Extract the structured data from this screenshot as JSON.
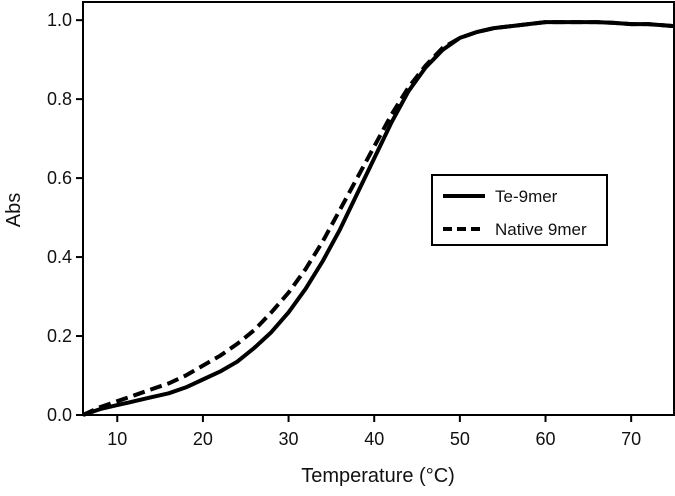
{
  "chart_data": {
    "type": "line",
    "title": "",
    "xlabel": "Temperature (°C)",
    "ylabel": "Abs",
    "xlim": [
      6,
      75
    ],
    "ylim": [
      0,
      1.046
    ],
    "xticks": [
      10,
      20,
      30,
      40,
      50,
      60,
      70
    ],
    "xtick_labels": [
      "10",
      "20",
      "30",
      "40",
      "50",
      "60",
      "70"
    ],
    "yticks": [
      0,
      0.2,
      0.4,
      0.6,
      0.8,
      1.0
    ],
    "ytick_labels": [
      "0.0",
      "0.2",
      "0.4",
      "0.6",
      "0.8",
      "1.0"
    ],
    "grid": false,
    "legend_position": "center-right",
    "series": [
      {
        "name": "Te-9mer",
        "style": "solid",
        "color": "#000000",
        "x": [
          6,
          8,
          10,
          12,
          14,
          16,
          18,
          20,
          22,
          24,
          26,
          28,
          30,
          32,
          34,
          36,
          38,
          40,
          42,
          44,
          46,
          48,
          50,
          52,
          54,
          56,
          58,
          60,
          62,
          64,
          66,
          68,
          70,
          72,
          75
        ],
        "y": [
          0.0,
          0.015,
          0.025,
          0.035,
          0.045,
          0.055,
          0.07,
          0.09,
          0.11,
          0.135,
          0.17,
          0.21,
          0.26,
          0.32,
          0.39,
          0.47,
          0.56,
          0.65,
          0.74,
          0.82,
          0.88,
          0.925,
          0.955,
          0.97,
          0.98,
          0.985,
          0.99,
          0.995,
          0.995,
          0.995,
          0.995,
          0.993,
          0.99,
          0.99,
          0.985
        ]
      },
      {
        "name": "Native 9mer",
        "style": "dashed",
        "color": "#000000",
        "x": [
          6,
          8,
          10,
          12,
          14,
          16,
          18,
          20,
          22,
          24,
          26,
          28,
          30,
          32,
          34,
          36,
          38,
          40,
          42,
          44,
          46,
          48,
          50,
          52,
          54,
          56,
          58,
          60,
          62,
          64,
          66,
          68,
          70,
          72,
          75
        ],
        "y": [
          0.0,
          0.02,
          0.035,
          0.05,
          0.065,
          0.08,
          0.1,
          0.125,
          0.15,
          0.18,
          0.215,
          0.26,
          0.31,
          0.37,
          0.44,
          0.52,
          0.6,
          0.68,
          0.76,
          0.83,
          0.885,
          0.93,
          0.955,
          0.97,
          0.98,
          0.985,
          0.99,
          0.995,
          0.995,
          0.995,
          0.995,
          0.993,
          0.99,
          0.99,
          0.985
        ]
      }
    ]
  }
}
